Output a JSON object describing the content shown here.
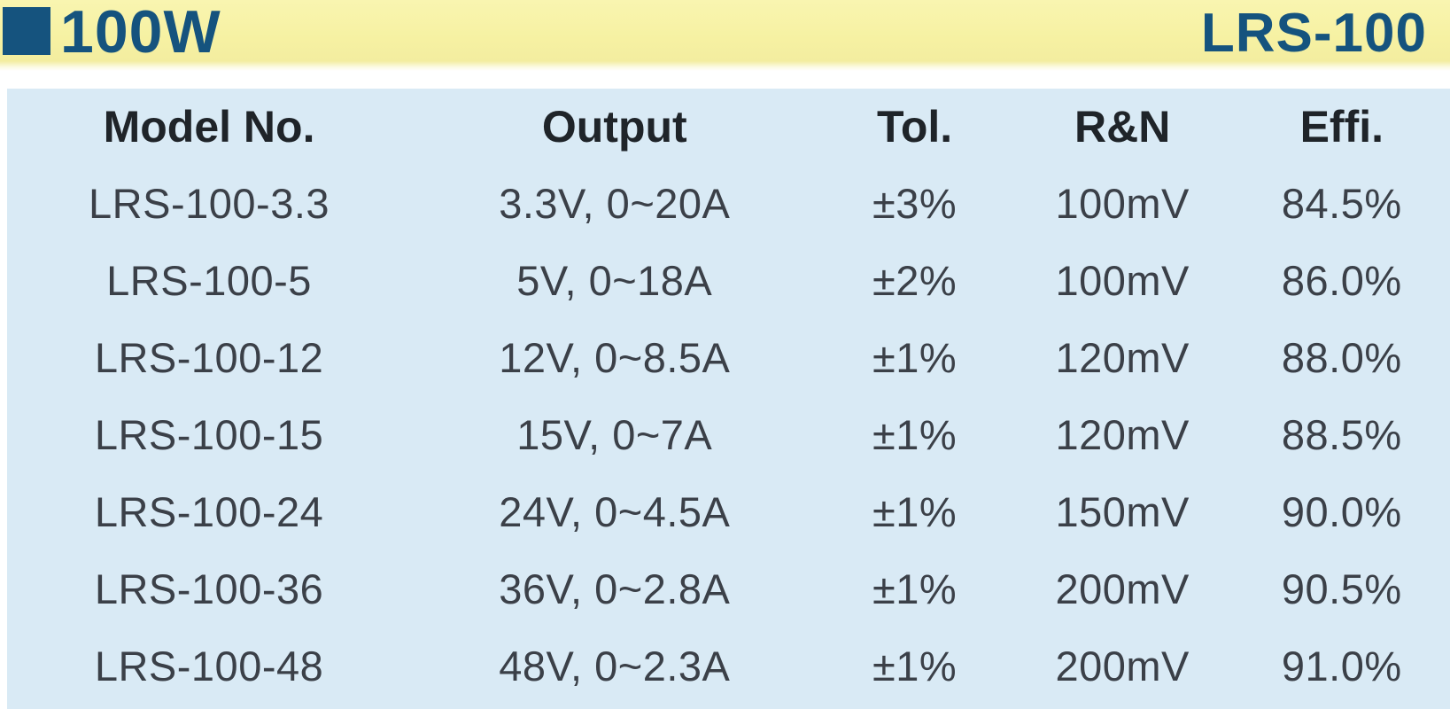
{
  "header": {
    "wattage_label": "100W",
    "series_label": "LRS-100"
  },
  "colors": {
    "accent_blue": "#15537E",
    "band_yellow": "#F6F1A2",
    "panel_blue": "#D9EAF5"
  },
  "spec_table": {
    "columns": [
      "Model No.",
      "Output",
      "Tol.",
      "R&N",
      "Effi."
    ],
    "rows": [
      [
        "LRS-100-3.3",
        "3.3V, 0~20A",
        "±3%",
        "100mV",
        "84.5%"
      ],
      [
        "LRS-100-5",
        "5V, 0~18A",
        "±2%",
        "100mV",
        "86.0%"
      ],
      [
        "LRS-100-12",
        "12V, 0~8.5A",
        "±1%",
        "120mV",
        "88.0%"
      ],
      [
        "LRS-100-15",
        "15V, 0~7A",
        "±1%",
        "120mV",
        "88.5%"
      ],
      [
        "LRS-100-24",
        "24V, 0~4.5A",
        "±1%",
        "150mV",
        "90.0%"
      ],
      [
        "LRS-100-36",
        "36V, 0~2.8A",
        "±1%",
        "200mV",
        "90.5%"
      ],
      [
        "LRS-100-48",
        "48V, 0~2.3A",
        "±1%",
        "200mV",
        "91.0%"
      ]
    ]
  }
}
